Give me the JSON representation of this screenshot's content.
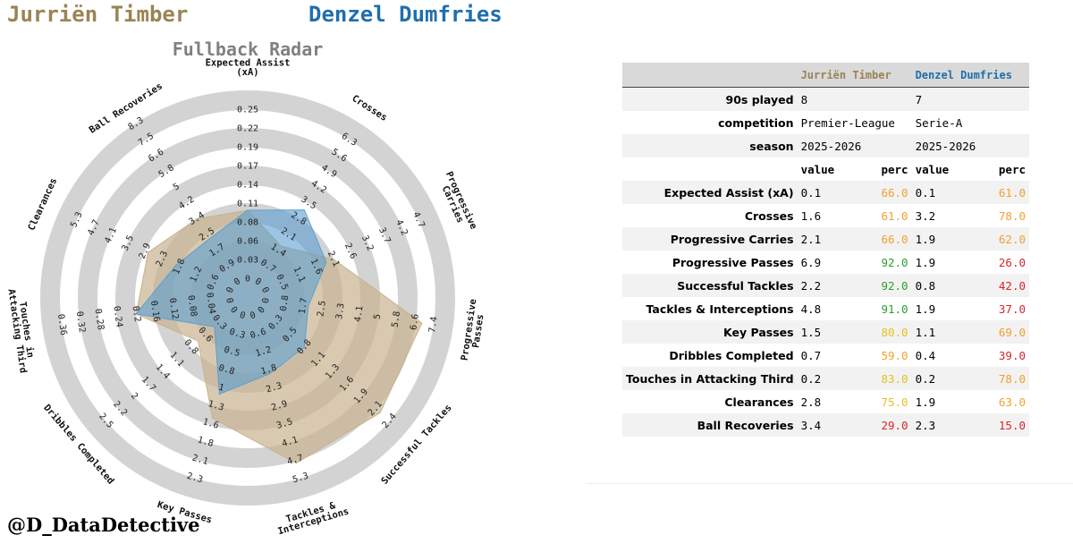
{
  "players": {
    "p1": {
      "name": "Jurriën Timber",
      "color": "#9b8354",
      "fill": "#c8b28e"
    },
    "p2": {
      "name": "Denzel Dumfries",
      "color": "#1f6fad",
      "fill": "#5b9fd0"
    }
  },
  "chart_data": {
    "type": "radar",
    "title": "Fullback Radar",
    "metrics": [
      {
        "label": "Expected Assist\n(xA)",
        "ticks": [
          "0",
          "0.03",
          "0.06",
          "0.08",
          "0.11",
          "0.14",
          "0.17",
          "0.19",
          "0.22",
          "0.25"
        ]
      },
      {
        "label": "Crosses",
        "ticks": [
          "0",
          "0.7",
          "1.4",
          "2.1",
          "2.8",
          "3.5",
          "4.2",
          "4.9",
          "5.6",
          "6.3"
        ]
      },
      {
        "label": "Progressive\nCarries",
        "ticks": [
          "0",
          "0.5",
          "1.1",
          "1.6",
          "2.1",
          "2.6",
          "3.2",
          "3.7",
          "4.2",
          "4.7"
        ]
      },
      {
        "label": "Progressive\nPasses",
        "ticks": [
          "0",
          "0.8",
          "1.7",
          "2.5",
          "3.3",
          "4.1",
          "5",
          "5.8",
          "6.6",
          "7.4"
        ]
      },
      {
        "label": "Successful Tackles",
        "ticks": [
          "0",
          "0.3",
          "0.5",
          "0.8",
          "1.1",
          "1.3",
          "1.6",
          "1.9",
          "2.1",
          "2.4"
        ]
      },
      {
        "label": "Tackles &\nInterceptions",
        "ticks": [
          "0",
          "0.6",
          "1.2",
          "1.8",
          "2.3",
          "2.9",
          "3.5",
          "4.1",
          "4.7",
          "5.3"
        ]
      },
      {
        "label": "Key Passes",
        "ticks": [
          "0",
          "0.3",
          "0.5",
          "0.8",
          "1",
          "1.3",
          "1.6",
          "1.8",
          "2.1",
          "2.3"
        ]
      },
      {
        "label": "Dribbles Completed",
        "ticks": [
          "0",
          "0.3",
          "0.6",
          "0.8",
          "1.1",
          "1.4",
          "1.7",
          "2",
          "2.2",
          "2.5"
        ]
      },
      {
        "label": "Touches in\nAttacking Third",
        "ticks": [
          "0",
          "0.04",
          "0.08",
          "0.12",
          "0.16",
          "0.2",
          "0.24",
          "0.28",
          "0.32",
          "0.36"
        ]
      },
      {
        "label": "Clearances",
        "ticks": [
          "0",
          "0.6",
          "1.2",
          "1.8",
          "2.3",
          "2.9",
          "3.5",
          "4.1",
          "4.7",
          "5.3"
        ]
      },
      {
        "label": "Ball Recoveries",
        "ticks": [
          "0",
          "0.9",
          "1.7",
          "2.5",
          "3.4",
          "4.2",
          "5",
          "5.8",
          "6.6",
          "7.5",
          "8.3"
        ]
      }
    ],
    "series": [
      {
        "name": "Jurriën Timber",
        "values": [
          0.1,
          1.6,
          2.1,
          6.9,
          2.2,
          4.8,
          1.5,
          0.7,
          0.2,
          2.8,
          3.4
        ]
      },
      {
        "name": "Denzel Dumfries",
        "values": [
          0.1,
          3.2,
          1.9,
          1.9,
          0.8,
          1.9,
          1.1,
          0.4,
          0.2,
          1.9,
          2.3
        ]
      }
    ]
  },
  "table": {
    "header": [
      "",
      "Jurriën Timber",
      "",
      "Denzel Dumfries",
      ""
    ],
    "meta_rows": [
      {
        "label": "90s played",
        "p1": "8",
        "p2": "7"
      },
      {
        "label": "competition",
        "p1": "Premier-League",
        "p2": "Serie-A"
      },
      {
        "label": "season",
        "p1": "2025-2026",
        "p2": "2025-2026"
      }
    ],
    "subheader": {
      "value": "value",
      "perc": "perc"
    },
    "stat_rows": [
      {
        "label": "Expected Assist (xA)",
        "v1": "0.1",
        "p1": "66.0",
        "c1": "#f0a030",
        "v2": "0.1",
        "p2": "61.0",
        "c2": "#f0a030"
      },
      {
        "label": "Crosses",
        "v1": "1.6",
        "p1": "61.0",
        "c1": "#f0a030",
        "v2": "3.2",
        "p2": "78.0",
        "c2": "#f0a030"
      },
      {
        "label": "Progressive Carries",
        "v1": "2.1",
        "p1": "66.0",
        "c1": "#f0a030",
        "v2": "1.9",
        "p2": "62.0",
        "c2": "#f0a030"
      },
      {
        "label": "Progressive Passes",
        "v1": "6.9",
        "p1": "92.0",
        "c1": "#2ca02c",
        "v2": "1.9",
        "p2": "26.0",
        "c2": "#d62728"
      },
      {
        "label": "Successful Tackles",
        "v1": "2.2",
        "p1": "92.0",
        "c1": "#2ca02c",
        "v2": "0.8",
        "p2": "42.0",
        "c2": "#d62728"
      },
      {
        "label": "Tackles & Interceptions",
        "v1": "4.8",
        "p1": "91.0",
        "c1": "#2ca02c",
        "v2": "1.9",
        "p2": "37.0",
        "c2": "#d62728"
      },
      {
        "label": "Key Passes",
        "v1": "1.5",
        "p1": "80.0",
        "c1": "#e8c020",
        "v2": "1.1",
        "p2": "69.0",
        "c2": "#f0a030"
      },
      {
        "label": "Dribbles Completed",
        "v1": "0.7",
        "p1": "59.0",
        "c1": "#f0a030",
        "v2": "0.4",
        "p2": "39.0",
        "c2": "#d62728"
      },
      {
        "label": "Touches in Attacking Third",
        "v1": "0.2",
        "p1": "83.0",
        "c1": "#e8c020",
        "v2": "0.2",
        "p2": "78.0",
        "c2": "#f0a030"
      },
      {
        "label": "Clearances",
        "v1": "2.8",
        "p1": "75.0",
        "c1": "#e8c020",
        "v2": "1.9",
        "p2": "63.0",
        "c2": "#f0a030"
      },
      {
        "label": "Ball Recoveries",
        "v1": "3.4",
        "p1": "29.0",
        "c1": "#d62728",
        "v2": "2.3",
        "p2": "15.0",
        "c2": "#d62728"
      }
    ]
  },
  "credit": "@D_DataDetective"
}
